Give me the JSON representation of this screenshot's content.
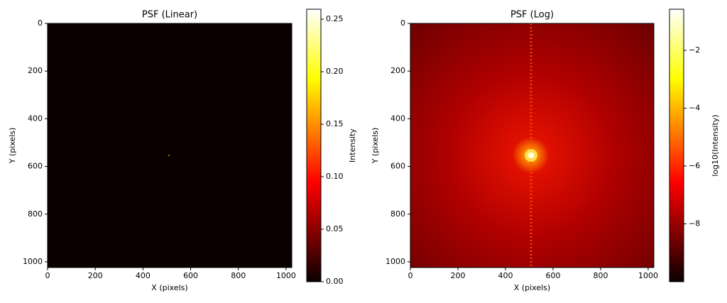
{
  "chart_data": [
    {
      "type": "heatmap",
      "title": "PSF (Linear)",
      "xlabel": "X (pixels)",
      "ylabel": "Y (pixels)",
      "xlim": [
        0,
        1024
      ],
      "ylim": [
        1024,
        0
      ],
      "xticks": [
        0,
        200,
        400,
        600,
        800,
        1000
      ],
      "yticks": [
        0,
        200,
        400,
        600,
        800,
        1000
      ],
      "colormap": "hot",
      "colorbar": {
        "label": "Intensity",
        "lim": [
          0,
          0.2595
        ],
        "ticks": [
          {
            "value": 0,
            "label": "0.00"
          },
          {
            "value": 0.05,
            "label": "0.05"
          },
          {
            "value": 0.1,
            "label": "0.10"
          },
          {
            "value": 0.15,
            "label": "0.15"
          },
          {
            "value": 0.2,
            "label": "0.20"
          },
          {
            "value": 0.25,
            "label": "0.25"
          }
        ]
      }
    },
    {
      "type": "heatmap",
      "title": "PSF (Log)",
      "xlabel": "X (pixels)",
      "ylabel": "Y (pixels)",
      "xlim": [
        0,
        1024
      ],
      "ylim": [
        1024,
        0
      ],
      "xticks": [
        0,
        200,
        400,
        600,
        800,
        1000
      ],
      "yticks": [
        0,
        200,
        400,
        600,
        800,
        1000
      ],
      "colormap": "hot",
      "colorbar": {
        "label": "log10(Intensity)",
        "lim": [
          -10.0,
          -0.58
        ],
        "ticks": [
          {
            "value": -8,
            "label": "−8"
          },
          {
            "value": -6,
            "label": "−6"
          },
          {
            "value": -4,
            "label": "−4"
          },
          {
            "value": -2,
            "label": "−2"
          }
        ]
      }
    }
  ]
}
